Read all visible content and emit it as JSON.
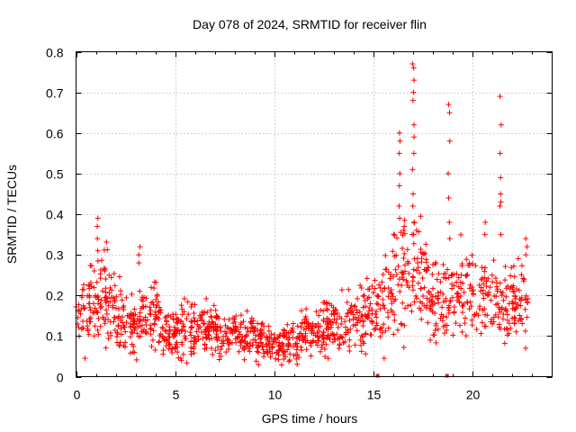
{
  "chart_data": {
    "type": "scatter",
    "title": "Day 078 of 2024, SRMTID for receiver flin",
    "xlabel": "GPS time / hours",
    "ylabel": "SRMTID / TECUs",
    "xlim": [
      0,
      24
    ],
    "ylim": [
      0,
      0.8
    ],
    "xticks": [
      0,
      5,
      10,
      15,
      20
    ],
    "yticks": [
      0,
      0.1,
      0.2,
      0.3,
      0.4,
      0.5,
      0.6,
      0.7,
      0.8
    ],
    "xtick_labels": [
      "0",
      "5",
      "10",
      "15",
      "20"
    ],
    "ytick_labels": [
      "0",
      "0.1",
      "0.2",
      "0.3",
      "0.4",
      "0.5",
      "0.6",
      "0.7",
      "0.8"
    ],
    "grid": true,
    "marker": "+",
    "color": "#ff0000",
    "zero_markers": [
      {
        "x": 15.2,
        "y": 0
      },
      {
        "x": 18.7,
        "y": 0
      }
    ],
    "trend": [
      [
        0.0,
        0.15
      ],
      [
        0.5,
        0.17
      ],
      [
        1.0,
        0.18
      ],
      [
        1.5,
        0.21
      ],
      [
        2.0,
        0.17
      ],
      [
        2.5,
        0.13
      ],
      [
        3.0,
        0.13
      ],
      [
        3.5,
        0.15
      ],
      [
        4.0,
        0.14
      ],
      [
        4.5,
        0.12
      ],
      [
        5.0,
        0.11
      ],
      [
        5.5,
        0.12
      ],
      [
        6.0,
        0.12
      ],
      [
        6.5,
        0.11
      ],
      [
        7.0,
        0.11
      ],
      [
        7.5,
        0.1
      ],
      [
        8.0,
        0.1
      ],
      [
        8.5,
        0.1
      ],
      [
        9.0,
        0.1
      ],
      [
        9.5,
        0.09
      ],
      [
        10.0,
        0.08
      ],
      [
        10.5,
        0.08
      ],
      [
        11.0,
        0.09
      ],
      [
        11.5,
        0.1
      ],
      [
        12.0,
        0.11
      ],
      [
        12.5,
        0.12
      ],
      [
        13.0,
        0.12
      ],
      [
        13.5,
        0.13
      ],
      [
        14.0,
        0.14
      ],
      [
        14.5,
        0.15
      ],
      [
        15.0,
        0.15
      ],
      [
        15.5,
        0.17
      ],
      [
        16.0,
        0.24
      ],
      [
        16.5,
        0.26
      ],
      [
        17.0,
        0.28
      ],
      [
        17.5,
        0.24
      ],
      [
        18.0,
        0.2
      ],
      [
        18.5,
        0.19
      ],
      [
        19.0,
        0.19
      ],
      [
        19.5,
        0.2
      ],
      [
        20.0,
        0.21
      ],
      [
        20.5,
        0.2
      ],
      [
        21.0,
        0.17
      ],
      [
        21.5,
        0.17
      ],
      [
        22.0,
        0.18
      ],
      [
        22.5,
        0.19
      ],
      [
        22.8,
        0.2
      ]
    ],
    "spikes": [
      {
        "x": 1.1,
        "values": [
          0.39,
          0.37,
          0.34,
          0.31
        ]
      },
      {
        "x": 3.2,
        "values": [
          0.32,
          0.3,
          0.28
        ]
      },
      {
        "x": 16.3,
        "values": [
          0.6,
          0.58,
          0.55,
          0.5,
          0.47,
          0.42,
          0.39
        ]
      },
      {
        "x": 17.0,
        "values": [
          0.77,
          0.76,
          0.73,
          0.7,
          0.68,
          0.62,
          0.59,
          0.55,
          0.51,
          0.45,
          0.42,
          0.38
        ]
      },
      {
        "x": 18.8,
        "values": [
          0.67,
          0.65,
          0.58,
          0.5,
          0.44,
          0.38,
          0.34
        ]
      },
      {
        "x": 21.4,
        "values": [
          0.69,
          0.62,
          0.55,
          0.49,
          0.45,
          0.43,
          0.42,
          0.35
        ]
      },
      {
        "x": 22.7,
        "values": [
          0.34,
          0.32,
          0.3
        ]
      },
      {
        "x": 20.6,
        "values": [
          0.38,
          0.35
        ]
      }
    ]
  }
}
